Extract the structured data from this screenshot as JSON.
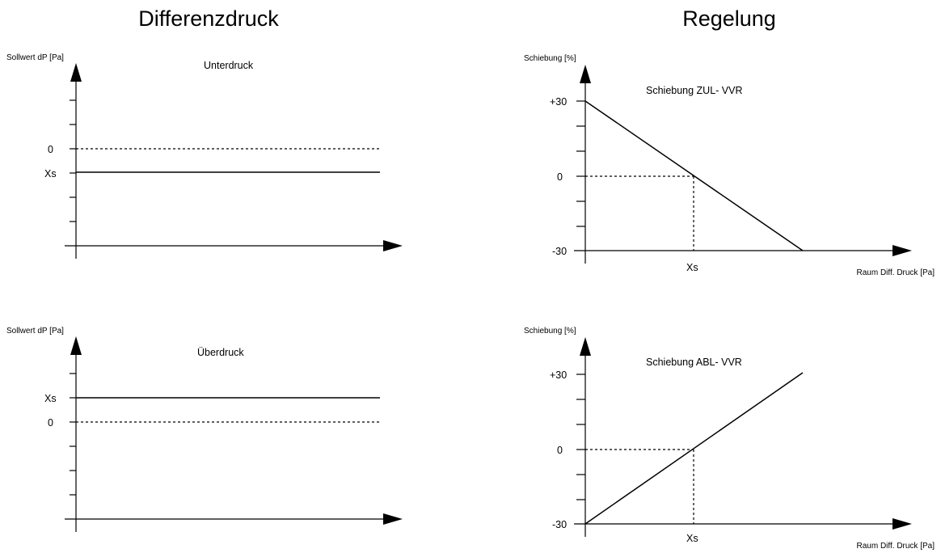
{
  "column_titles": {
    "left": "Differenzdruck",
    "right": "Regelung"
  },
  "panels": {
    "unterdruck": {
      "ylabel": "Sollwert dP [Pa]",
      "title": "Unterdruck",
      "label_zero": "0",
      "label_xs": "Xs"
    },
    "ueberdruck": {
      "ylabel": "Sollwert dP [Pa]",
      "title": "Überdruck",
      "label_xs": "Xs",
      "label_zero": "0"
    },
    "zul": {
      "ylabel": "Schiebung [%]",
      "title": "Schiebung ZUL- VVR",
      "tick_top": "+30",
      "tick_mid": "0",
      "tick_bottom": "-30",
      "xs_label": "Xs",
      "xlabel": "Raum Diff. Druck [Pa]"
    },
    "abl": {
      "ylabel": "Schiebung [%]",
      "title": "Schiebung ABL- VVR",
      "tick_top": "+30",
      "tick_mid": "0",
      "tick_bottom": "-30",
      "xs_label": "Xs",
      "xlabel": "Raum Diff. Druck [Pa]"
    }
  }
}
